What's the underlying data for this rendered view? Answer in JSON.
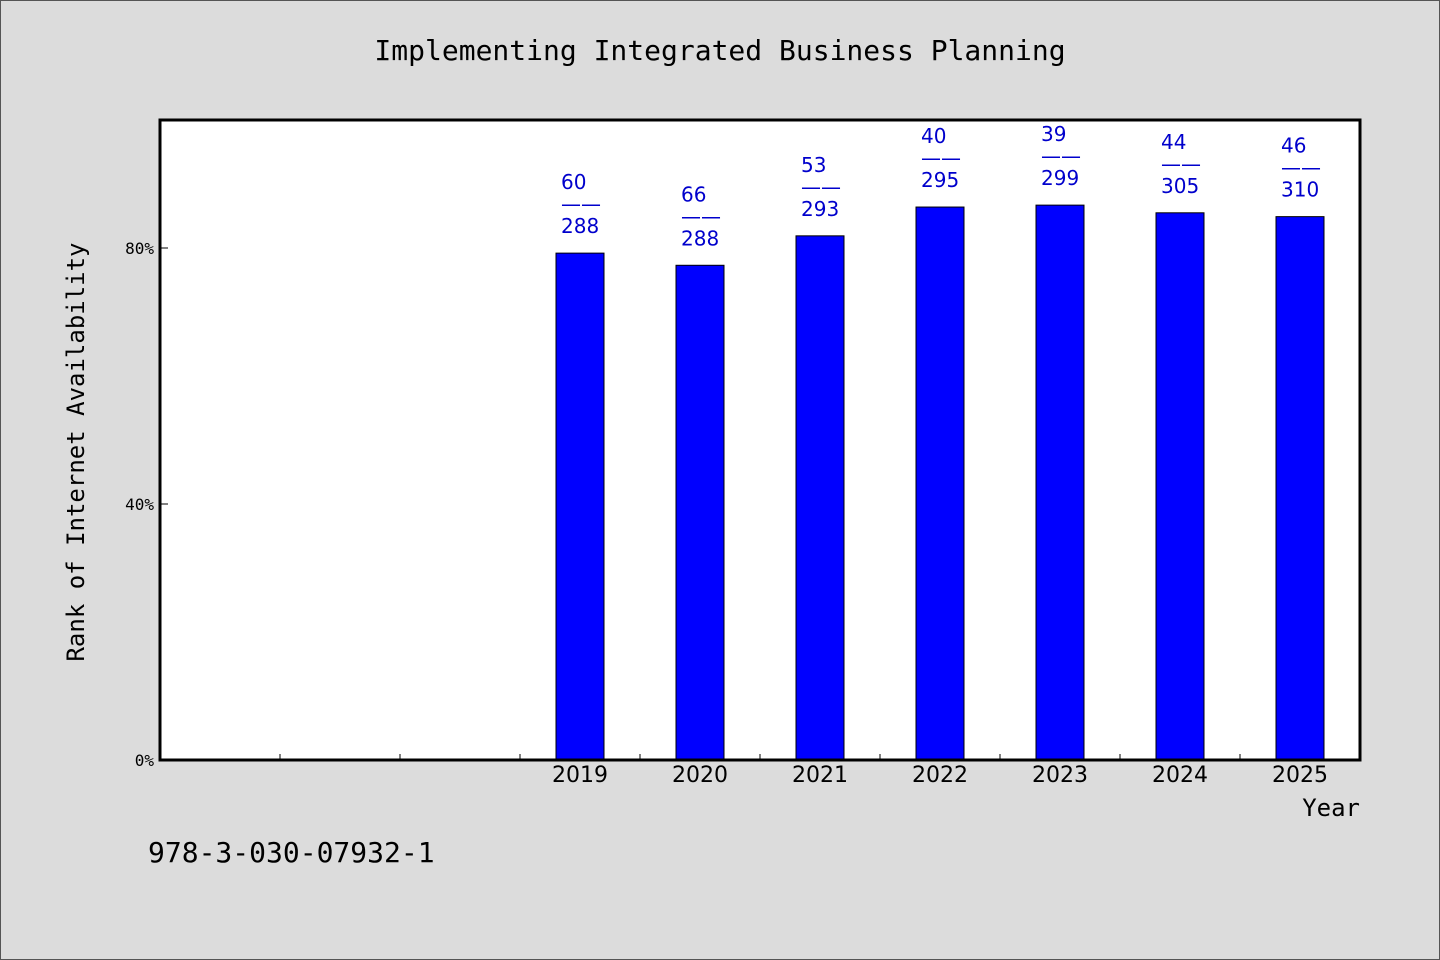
{
  "chart_data": {
    "type": "bar",
    "title": "Implementing Integrated Business Planning",
    "xlabel": "Year",
    "ylabel": "Rank of Internet Availability",
    "categories": [
      "",
      "",
      "",
      "2019",
      "2020",
      "2021",
      "2022",
      "2023",
      "2024",
      "2025"
    ],
    "values": [
      null,
      null,
      null,
      79.2,
      77.3,
      81.9,
      86.4,
      86.7,
      85.5,
      84.9
    ],
    "data_labels": [
      null,
      null,
      null,
      {
        "top": "60",
        "sep": "——",
        "bottom": "288"
      },
      {
        "top": "66",
        "sep": "——",
        "bottom": "288"
      },
      {
        "top": "53",
        "sep": "——",
        "bottom": "293"
      },
      {
        "top": "40",
        "sep": "——",
        "bottom": "295"
      },
      {
        "top": "39",
        "sep": "——",
        "bottom": "299"
      },
      {
        "top": "44",
        "sep": "——",
        "bottom": "305"
      },
      {
        "top": "46",
        "sep": "——",
        "bottom": "310"
      }
    ],
    "ylim": [
      0,
      100
    ],
    "yticks": [
      0,
      40,
      80
    ],
    "ytick_labels": [
      "0%",
      "40%",
      "80%"
    ],
    "bar_color": "#0000ff",
    "label_color": "#0000cc",
    "grid": false,
    "legend": "none"
  },
  "footer_text": "978-3-030-07932-1",
  "colors": {
    "background": "#dcdcdc",
    "plot_background": "#ffffff",
    "axis": "#000000"
  }
}
